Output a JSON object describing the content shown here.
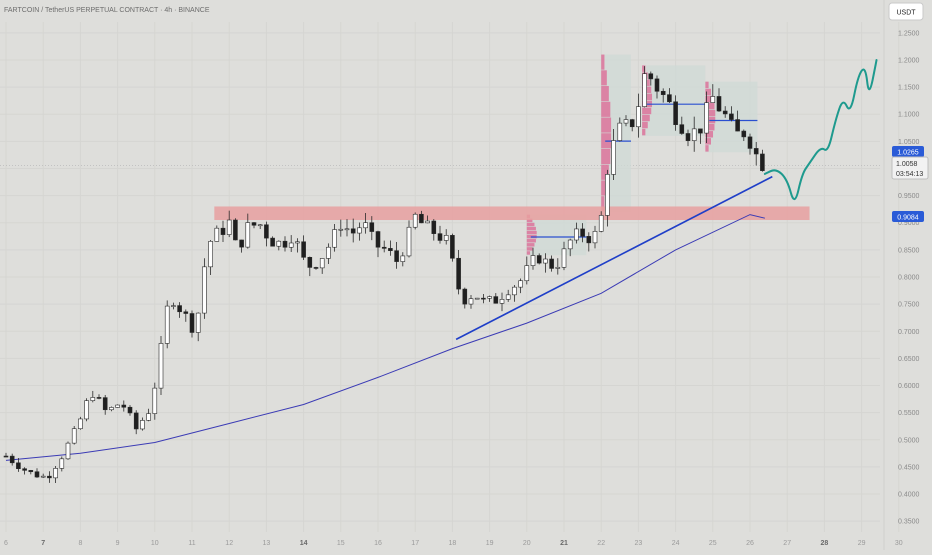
{
  "header": {
    "title": "FARTCOIN / TetherUS PERPETUAL CONTRACT · 4h · BINANCE",
    "currency_button": "USDT"
  },
  "price_tags": {
    "ma_value": "1.0265",
    "last_price": "1.0058",
    "countdown": "03:54:13",
    "ma200_value": "0.9084"
  },
  "colors": {
    "background": "#dededb",
    "up_candle": "#ffffff",
    "down_candle": "#1f1f1f",
    "moving_average": "#3b3bb5",
    "trendline": "#1f3fc8",
    "resistance_zone": "#e8a0a0",
    "projection": "#1e9a8e",
    "volume_profile": "#e23a7a",
    "tag_blue": "#2a5bd7"
  },
  "chart_data": {
    "type": "candlestick",
    "title": "FARTCOIN / TetherUS PERPETUAL CONTRACT · 4h · BINANCE",
    "ylim": [
      0.33,
      1.27
    ],
    "y_ticks": [
      "1.2500",
      "1.2000",
      "1.1500",
      "1.1000",
      "1.0500",
      "1.0000",
      "0.9500",
      "0.9000",
      "0.8500",
      "0.8000",
      "0.7500",
      "0.7000",
      "0.6500",
      "0.6000",
      "0.5500",
      "0.5000",
      "0.4500",
      "0.4000",
      "0.3500"
    ],
    "x_ticks": [
      {
        "label": "6",
        "day": 6,
        "bold": false
      },
      {
        "label": "7",
        "day": 7,
        "bold": true
      },
      {
        "label": "8",
        "day": 8,
        "bold": false
      },
      {
        "label": "9",
        "day": 9,
        "bold": false
      },
      {
        "label": "10",
        "day": 10,
        "bold": false
      },
      {
        "label": "11",
        "day": 11,
        "bold": false
      },
      {
        "label": "12",
        "day": 12,
        "bold": false
      },
      {
        "label": "13",
        "day": 13,
        "bold": false
      },
      {
        "label": "14",
        "day": 14,
        "bold": true
      },
      {
        "label": "15",
        "day": 15,
        "bold": false
      },
      {
        "label": "16",
        "day": 16,
        "bold": false
      },
      {
        "label": "17",
        "day": 17,
        "bold": false
      },
      {
        "label": "18",
        "day": 18,
        "bold": false
      },
      {
        "label": "19",
        "day": 19,
        "bold": false
      },
      {
        "label": "20",
        "day": 20,
        "bold": false
      },
      {
        "label": "21",
        "day": 21,
        "bold": true
      },
      {
        "label": "22",
        "day": 22,
        "bold": false
      },
      {
        "label": "23",
        "day": 23,
        "bold": false
      },
      {
        "label": "24",
        "day": 24,
        "bold": false
      },
      {
        "label": "25",
        "day": 25,
        "bold": false
      },
      {
        "label": "26",
        "day": 26,
        "bold": false
      },
      {
        "label": "27",
        "day": 27,
        "bold": false
      },
      {
        "label": "28",
        "day": 28,
        "bold": true
      },
      {
        "label": "29",
        "day": 29,
        "bold": false
      },
      {
        "label": "30",
        "day": 30,
        "bold": false
      }
    ],
    "close_path": [
      [
        6.0,
        0.47
      ],
      [
        6.6,
        0.44
      ],
      [
        7.1,
        0.43
      ],
      [
        7.5,
        0.47
      ],
      [
        7.9,
        0.52
      ],
      [
        8.3,
        0.59
      ],
      [
        8.7,
        0.55
      ],
      [
        9.1,
        0.57
      ],
      [
        9.5,
        0.52
      ],
      [
        9.9,
        0.56
      ],
      [
        10.2,
        0.68
      ],
      [
        10.4,
        0.77
      ],
      [
        10.7,
        0.74
      ],
      [
        11.0,
        0.71
      ],
      [
        11.2,
        0.74
      ],
      [
        11.4,
        0.86
      ],
      [
        11.7,
        0.88
      ],
      [
        12.0,
        0.9
      ],
      [
        12.2,
        0.85
      ],
      [
        12.5,
        0.89
      ],
      [
        12.8,
        0.9
      ],
      [
        13.1,
        0.87
      ],
      [
        13.4,
        0.86
      ],
      [
        13.7,
        0.88
      ],
      [
        14.0,
        0.83
      ],
      [
        14.2,
        0.82
      ],
      [
        14.5,
        0.84
      ],
      [
        14.8,
        0.87
      ],
      [
        15.0,
        0.9
      ],
      [
        15.3,
        0.88
      ],
      [
        15.6,
        0.9
      ],
      [
        15.9,
        0.86
      ],
      [
        16.2,
        0.85
      ],
      [
        16.5,
        0.83
      ],
      [
        16.8,
        0.87
      ],
      [
        17.0,
        0.91
      ],
      [
        17.3,
        0.89
      ],
      [
        17.6,
        0.88
      ],
      [
        17.9,
        0.86
      ],
      [
        18.1,
        0.79
      ],
      [
        18.3,
        0.76
      ],
      [
        18.6,
        0.77
      ],
      [
        18.9,
        0.75
      ],
      [
        19.2,
        0.76
      ],
      [
        19.5,
        0.78
      ],
      [
        19.8,
        0.79
      ],
      [
        20.0,
        0.81
      ],
      [
        20.3,
        0.84
      ],
      [
        20.6,
        0.82
      ],
      [
        20.9,
        0.83
      ],
      [
        21.2,
        0.87
      ],
      [
        21.5,
        0.88
      ],
      [
        21.8,
        0.87
      ],
      [
        22.0,
        0.91
      ],
      [
        22.2,
        1.02
      ],
      [
        22.5,
        1.07
      ],
      [
        22.8,
        1.08
      ],
      [
        23.0,
        1.12
      ],
      [
        23.2,
        1.18
      ],
      [
        23.5,
        1.15
      ],
      [
        23.8,
        1.12
      ],
      [
        24.1,
        1.09
      ],
      [
        24.4,
        1.06
      ],
      [
        24.7,
        1.08
      ],
      [
        25.0,
        1.13
      ],
      [
        25.3,
        1.1
      ],
      [
        25.6,
        1.06
      ],
      [
        25.9,
        1.07
      ],
      [
        26.2,
        1.02
      ],
      [
        26.4,
        1.0058
      ]
    ],
    "moving_average_200": [
      [
        6.0,
        0.462
      ],
      [
        8.0,
        0.475
      ],
      [
        10.0,
        0.495
      ],
      [
        12.0,
        0.53
      ],
      [
        14.0,
        0.565
      ],
      [
        16.0,
        0.615
      ],
      [
        18.0,
        0.668
      ],
      [
        20.0,
        0.715
      ],
      [
        22.0,
        0.77
      ],
      [
        24.0,
        0.85
      ],
      [
        26.0,
        0.915
      ],
      [
        26.4,
        0.9084
      ]
    ],
    "trendline": [
      [
        18.1,
        0.685
      ],
      [
        26.6,
        0.985
      ]
    ],
    "resistance_zone": {
      "low": 0.905,
      "high": 0.93,
      "from_day": 11.6,
      "to_day": 27.6
    },
    "projection": [
      [
        26.4,
        0.99
      ],
      [
        26.7,
        1.0
      ],
      [
        27.0,
        0.98
      ],
      [
        27.2,
        0.93
      ],
      [
        27.4,
        0.99
      ],
      [
        27.6,
        1.01
      ],
      [
        27.9,
        1.04
      ],
      [
        28.1,
        1.03
      ],
      [
        28.3,
        1.09
      ],
      [
        28.5,
        1.13
      ],
      [
        28.7,
        1.1
      ],
      [
        28.9,
        1.17
      ],
      [
        29.1,
        1.19
      ],
      [
        29.2,
        1.13
      ],
      [
        29.4,
        1.2
      ]
    ],
    "consolidation_boxes": [
      {
        "from_day": 20.0,
        "to_day": 21.6,
        "low": 0.84,
        "high": 0.915
      },
      {
        "from_day": 22.0,
        "to_day": 22.8,
        "low": 0.92,
        "high": 1.21
      },
      {
        "from_day": 23.1,
        "to_day": 24.8,
        "low": 1.06,
        "high": 1.19
      },
      {
        "from_day": 24.8,
        "to_day": 26.2,
        "low": 1.03,
        "high": 1.16
      }
    ]
  }
}
